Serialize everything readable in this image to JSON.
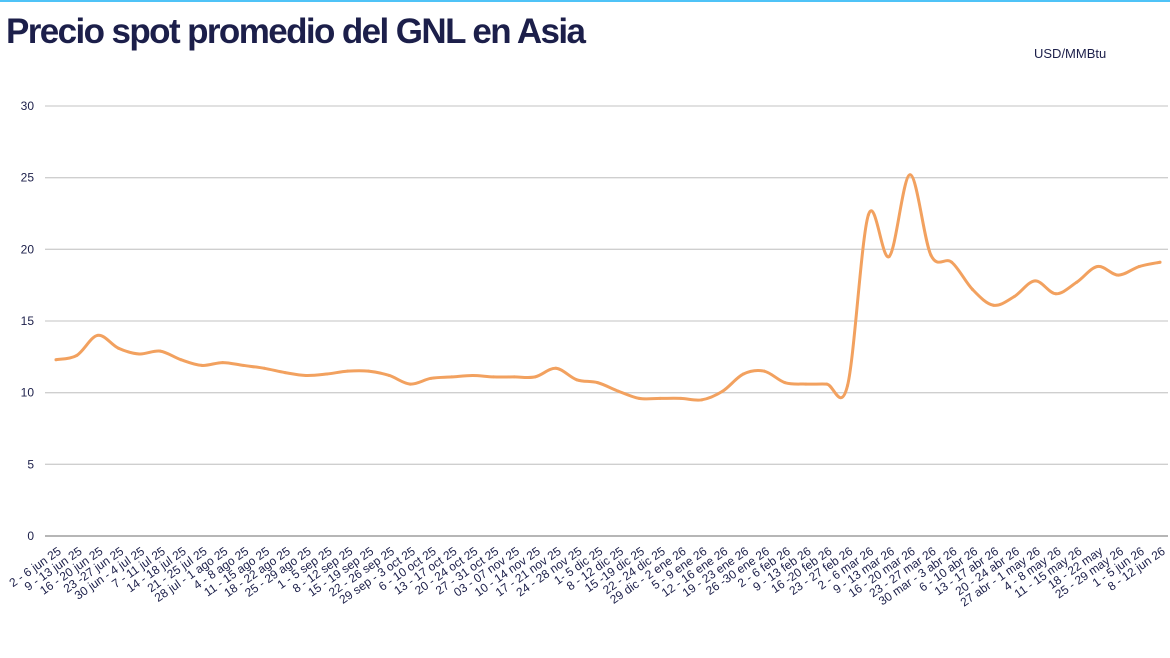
{
  "chart_data": {
    "type": "line",
    "title": "Precio spot promedio del GNL en Asia",
    "unit": "USD/MMBtu",
    "xlabel": "",
    "ylabel": "",
    "ylim": [
      0,
      30
    ],
    "yticks": [
      0,
      5,
      10,
      15,
      20,
      25,
      30
    ],
    "grid": true,
    "line_color": "#f2a15f",
    "categories": [
      "2 - 6 jun 25",
      "9 - 13 jun 25",
      "16 - 20 jun 25",
      "23 -27 jun 25",
      "30 jun - 4 jul 25",
      "7 - 11 jul 25",
      "14 - 18 jul 25",
      "21 - 25 jul 25",
      "28 jul - 1 ago 25",
      "4 - 8 ago 25",
      "11 - 15 ago 25",
      "18 - 22 ago 25",
      "25 - 29 ago 25",
      "1 - 5 sep 25",
      "8 - 12 sep 25",
      "15 - 19 sep 25",
      "22 - 26 sep 25",
      "29 sep - 3 oct 25",
      "6 - 10 oct 25",
      "13 - 17 oct 25",
      "20 - 24 oct 25",
      "27 - 31 oct 25",
      "03 - 07 nov 25",
      "10 - 14 nov 25",
      "17 - 21 nov 25",
      "24 - 28 nov 25",
      "1- 5 dic 25",
      "8 - 12 dic 25",
      "15 -19 dic 25",
      "22 - 24 dic 25",
      "29 dic - 2 ene 26",
      "5 - 9 ene 26",
      "12 - 16 ene 26",
      "19 - 23 ene 26",
      "26 -30 ene 26",
      "2 - 6 feb 26",
      "9 - 13 feb 26",
      "16 -20 feb 26",
      "23 - 27 feb 26",
      "2 - 6 mar 26",
      "9 - 13 mar 26",
      "16 - 20 mar 26",
      "23 - 27 mar 26",
      "30 mar - 3 abr 26",
      "6 - 10 abr 26",
      "13 - 17 abr 26",
      "20 - 24 abr 26",
      "27 abr - 1 may 26",
      "4 - 8 may 26",
      "11 - 15 may 26",
      "18 - 22 may",
      "25 - 29 may 26",
      "1 - 5 jun 26",
      "8 - 12 jun 26"
    ],
    "series": [
      {
        "values": [
          12.3,
          12.6,
          14.0,
          13.1,
          12.7,
          12.9,
          12.3,
          11.9,
          12.1,
          11.9,
          11.7,
          11.4,
          11.2,
          11.3,
          11.5,
          11.5,
          11.2,
          10.6,
          11.0,
          11.1,
          11.2,
          11.1,
          11.1,
          11.1,
          11.7,
          10.9,
          10.7,
          10.1,
          9.6,
          9.6,
          9.6,
          9.5,
          10.1,
          11.3,
          11.5,
          10.7,
          10.6,
          10.6,
          10.5,
          22.4,
          19.5,
          25.2,
          19.6,
          19.1,
          17.2,
          16.1,
          16.7,
          17.8,
          16.9,
          17.7,
          18.8,
          18.2,
          18.8,
          19.1
        ]
      }
    ]
  }
}
